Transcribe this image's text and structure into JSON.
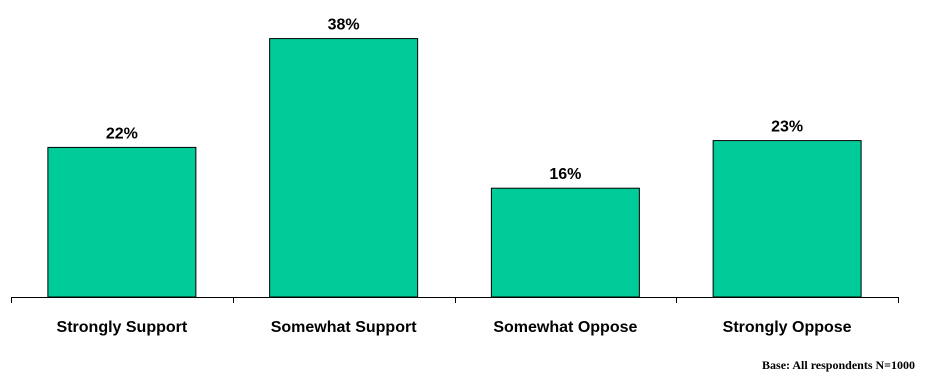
{
  "chart_data": {
    "type": "bar",
    "categories": [
      "Strongly Support",
      "Somewhat Support",
      "Somewhat Oppose",
      "Strongly Oppose"
    ],
    "values": [
      22,
      38,
      16,
      23
    ],
    "data_labels": [
      "22%",
      "38%",
      "16%",
      "23%"
    ],
    "title": "",
    "xlabel": "",
    "ylabel": "",
    "ylim": [
      0,
      40
    ],
    "grid": false,
    "legend": "none",
    "bar_color": "#00CC99"
  },
  "footnote": "Base: All respondents N=1000"
}
